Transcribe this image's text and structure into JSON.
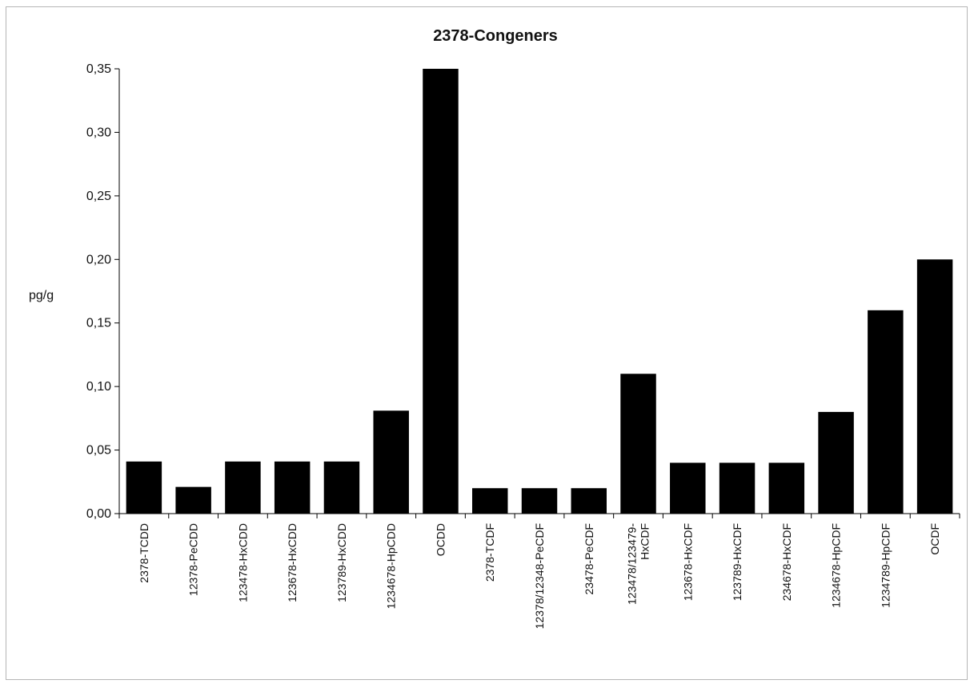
{
  "chart_data": {
    "type": "bar",
    "title": "2378-Congeners",
    "ylabel": "pg/g",
    "xlabel": "",
    "ylim": [
      0,
      0.35
    ],
    "yticks": [
      "0,00",
      "0,05",
      "0,10",
      "0,15",
      "0,20",
      "0,25",
      "0,30",
      "0,35"
    ],
    "categories": [
      [
        "2378-TCDD"
      ],
      [
        "12378-PeCDD"
      ],
      [
        "123478-HxCDD"
      ],
      [
        "123678-HxCDD"
      ],
      [
        "123789-HxCDD"
      ],
      [
        "1234678-HpCDD"
      ],
      [
        "OCDD"
      ],
      [
        "2378-TCDF"
      ],
      [
        "12378/12348-PeCDF"
      ],
      [
        "23478-PeCDF"
      ],
      [
        "123478/123479-",
        "HxCDF"
      ],
      [
        "123678-HxCDF"
      ],
      [
        "123789-HxCDF"
      ],
      [
        "234678-HxCDF"
      ],
      [
        "1234678-HpCDF"
      ],
      [
        "1234789-HpCDF"
      ],
      [
        "OCDF"
      ]
    ],
    "values": [
      0.041,
      0.021,
      0.041,
      0.041,
      0.041,
      0.081,
      0.35,
      0.02,
      0.02,
      0.02,
      0.11,
      0.04,
      0.04,
      0.04,
      0.08,
      0.16,
      0.2
    ],
    "bar_color": "#000000",
    "grid": false,
    "legend": "none"
  }
}
